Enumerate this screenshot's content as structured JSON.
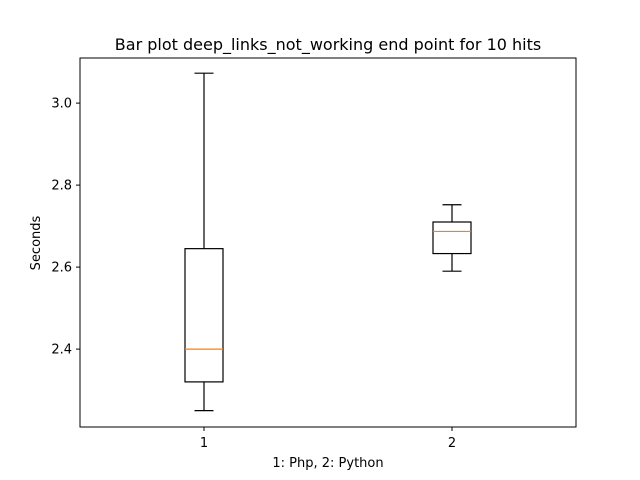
{
  "chart_data": {
    "type": "boxplot",
    "title": "Bar plot deep_links_not_working end point for 10 hits",
    "xlabel": "1: Php, 2: Python",
    "ylabel": "Seconds",
    "categories": [
      "1",
      "2"
    ],
    "ylim": [
      2.21,
      3.11
    ],
    "yticks": [
      2.4,
      2.6,
      2.8,
      3.0
    ],
    "ytick_labels": [
      "2.4",
      "2.6",
      "2.8",
      "3.0"
    ],
    "grid": false,
    "box_color": "#000000",
    "median_color": "#ff7f0e",
    "boxes": [
      {
        "category": "1",
        "whisker_low": 2.25,
        "q1": 2.32,
        "median": 2.4,
        "q3": 2.645,
        "whisker_high": 3.073
      },
      {
        "category": "2",
        "whisker_low": 2.59,
        "q1": 2.633,
        "median": 2.687,
        "q3": 2.71,
        "whisker_high": 2.752
      }
    ]
  }
}
